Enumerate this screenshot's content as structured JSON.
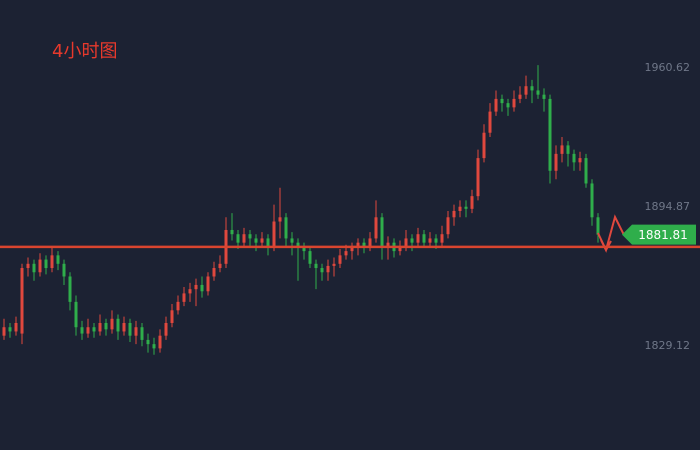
{
  "chart_data": {
    "type": "candlestick",
    "title": "4小时图",
    "ylim": [
      1779.93,
      1992.78
    ],
    "yticks": [
      1829.12,
      1894.87,
      1960.62
    ],
    "up_color": "#e0483e",
    "down_color": "#2fae4b",
    "support_line": 1876,
    "support_color": "#d9452f",
    "last_price": 1881.81,
    "open": [
      1834,
      1838,
      1836,
      1835,
      1866,
      1868,
      1864,
      1870,
      1866,
      1872,
      1868,
      1862,
      1850,
      1838,
      1835,
      1838,
      1836,
      1840,
      1837,
      1842,
      1836,
      1840,
      1834,
      1838,
      1832,
      1830,
      1828,
      1834,
      1840,
      1846,
      1850,
      1854,
      1856,
      1858,
      1855,
      1862,
      1866,
      1868,
      1884,
      1882,
      1878,
      1882,
      1880,
      1878,
      1880,
      1876,
      1888,
      1890,
      1880,
      1878,
      1876,
      1874,
      1868,
      1866,
      1864,
      1867,
      1868,
      1872,
      1874,
      1876,
      1878,
      1876,
      1880,
      1890,
      1876,
      1878,
      1874,
      1876,
      1880,
      1878,
      1882,
      1878,
      1880,
      1878,
      1882,
      1890,
      1893,
      1895,
      1894,
      1900,
      1918,
      1930,
      1940,
      1946,
      1944,
      1942,
      1946,
      1948,
      1952,
      1950,
      1948,
      1946,
      1912,
      1920,
      1924,
      1920,
      1916,
      1918,
      1906,
      1890
    ],
    "high": [
      1842,
      1840,
      1843,
      1868,
      1871,
      1870,
      1873,
      1872,
      1876,
      1874,
      1870,
      1864,
      1853,
      1841,
      1842,
      1840,
      1844,
      1842,
      1846,
      1844,
      1843,
      1842,
      1841,
      1840,
      1835,
      1833,
      1837,
      1843,
      1849,
      1853,
      1857,
      1859,
      1861,
      1862,
      1864,
      1869,
      1872,
      1890,
      1892,
      1884,
      1885,
      1884,
      1882,
      1883,
      1882,
      1896,
      1904,
      1892,
      1883,
      1880,
      1878,
      1876,
      1870,
      1868,
      1870,
      1871,
      1875,
      1877,
      1878,
      1880,
      1880,
      1883,
      1898,
      1892,
      1881,
      1880,
      1879,
      1884,
      1882,
      1885,
      1884,
      1883,
      1882,
      1886,
      1893,
      1896,
      1898,
      1898,
      1903,
      1922,
      1934,
      1944,
      1950,
      1948,
      1946,
      1950,
      1952,
      1957,
      1955,
      1962,
      1951,
      1948,
      1924,
      1928,
      1926,
      1922,
      1921,
      1920,
      1908,
      1892
    ],
    "low": [
      1832,
      1833,
      1834,
      1830,
      1862,
      1860,
      1862,
      1863,
      1864,
      1865,
      1858,
      1846,
      1834,
      1832,
      1833,
      1833,
      1834,
      1834,
      1835,
      1832,
      1834,
      1831,
      1830,
      1829,
      1826,
      1825,
      1826,
      1832,
      1838,
      1844,
      1848,
      1850,
      1848,
      1852,
      1853,
      1860,
      1864,
      1866,
      1879,
      1875,
      1876,
      1876,
      1874,
      1876,
      1872,
      1874,
      1880,
      1876,
      1872,
      1860,
      1870,
      1866,
      1856,
      1860,
      1860,
      1862,
      1866,
      1870,
      1870,
      1872,
      1873,
      1874,
      1878,
      1870,
      1870,
      1871,
      1872,
      1874,
      1874,
      1876,
      1876,
      1876,
      1875,
      1876,
      1880,
      1886,
      1890,
      1890,
      1892,
      1898,
      1916,
      1928,
      1938,
      1940,
      1938,
      1940,
      1944,
      1946,
      1944,
      1946,
      1940,
      1906,
      1908,
      1916,
      1914,
      1912,
      1912,
      1904,
      1886,
      1878
    ],
    "close": [
      1838,
      1836,
      1840,
      1866,
      1868,
      1864,
      1870,
      1866,
      1872,
      1868,
      1862,
      1850,
      1838,
      1835,
      1838,
      1836,
      1840,
      1837,
      1842,
      1836,
      1840,
      1834,
      1838,
      1832,
      1830,
      1828,
      1834,
      1840,
      1846,
      1850,
      1854,
      1856,
      1858,
      1855,
      1862,
      1866,
      1868,
      1884,
      1882,
      1878,
      1882,
      1880,
      1878,
      1880,
      1876,
      1888,
      1890,
      1880,
      1878,
      1876,
      1874,
      1868,
      1866,
      1864,
      1867,
      1868,
      1872,
      1874,
      1876,
      1878,
      1876,
      1880,
      1890,
      1876,
      1878,
      1874,
      1876,
      1880,
      1878,
      1882,
      1878,
      1880,
      1878,
      1882,
      1890,
      1893,
      1895,
      1894,
      1900,
      1918,
      1930,
      1940,
      1946,
      1944,
      1942,
      1946,
      1948,
      1952,
      1950,
      1948,
      1946,
      1912,
      1920,
      1924,
      1920,
      1916,
      1918,
      1906,
      1890,
      1881.81
    ]
  }
}
